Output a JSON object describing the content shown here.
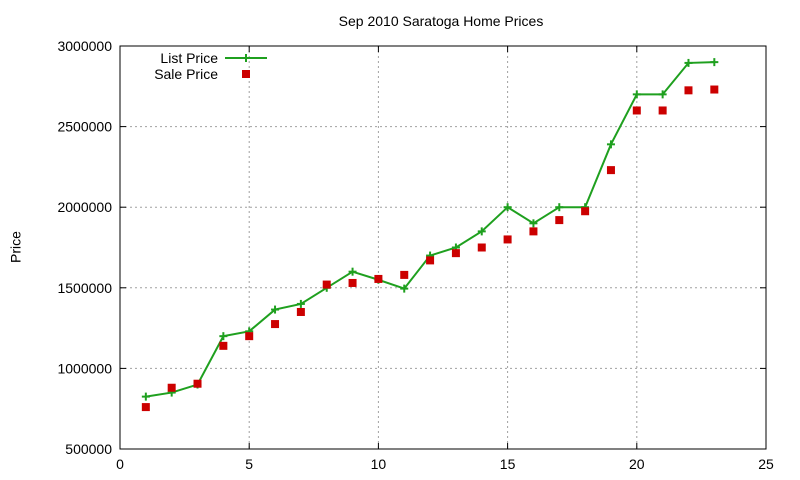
{
  "chart_data": {
    "type": "line",
    "title": "Sep 2010 Saratoga Home Prices",
    "xlabel": "",
    "ylabel": "Price",
    "xlim": [
      0,
      25
    ],
    "ylim": [
      500000,
      3000000
    ],
    "xticks": [
      0,
      5,
      10,
      15,
      20,
      25
    ],
    "xtick_labels": [
      "0",
      "5",
      "10",
      "15",
      "20",
      "25"
    ],
    "yticks": [
      500000,
      1000000,
      1500000,
      2000000,
      2500000,
      3000000
    ],
    "ytick_labels": [
      "500000",
      "1000000",
      "1500000",
      "2000000",
      "2500000",
      "3000000"
    ],
    "grid": true,
    "legend_position": "top-left",
    "series": [
      {
        "name": "List Price",
        "style": "line-with-plus-markers",
        "color": "#1fa01f",
        "x": [
          1,
          2,
          3,
          4,
          5,
          6,
          7,
          8,
          9,
          10,
          11,
          12,
          13,
          14,
          15,
          16,
          17,
          18,
          19,
          20,
          21,
          22,
          23
        ],
        "y": [
          825000,
          850000,
          900000,
          1200000,
          1230000,
          1365000,
          1400000,
          1500000,
          1600000,
          1550000,
          1495000,
          1700000,
          1750000,
          1850000,
          2000000,
          1900000,
          2000000,
          2000000,
          2390000,
          2700000,
          2700000,
          2895000,
          2900000
        ]
      },
      {
        "name": "Sale Price",
        "style": "square-markers",
        "color": "#cc0000",
        "x": [
          1,
          2,
          3,
          4,
          5,
          6,
          7,
          8,
          9,
          10,
          11,
          12,
          13,
          14,
          15,
          16,
          17,
          18,
          19,
          20,
          21,
          22,
          23
        ],
        "y": [
          760000,
          880000,
          905000,
          1140000,
          1200000,
          1275000,
          1350000,
          1520000,
          1530000,
          1555000,
          1580000,
          1670000,
          1715000,
          1750000,
          1800000,
          1850000,
          1920000,
          1975000,
          2230000,
          2600000,
          2600000,
          2725000,
          2730000
        ]
      }
    ]
  }
}
